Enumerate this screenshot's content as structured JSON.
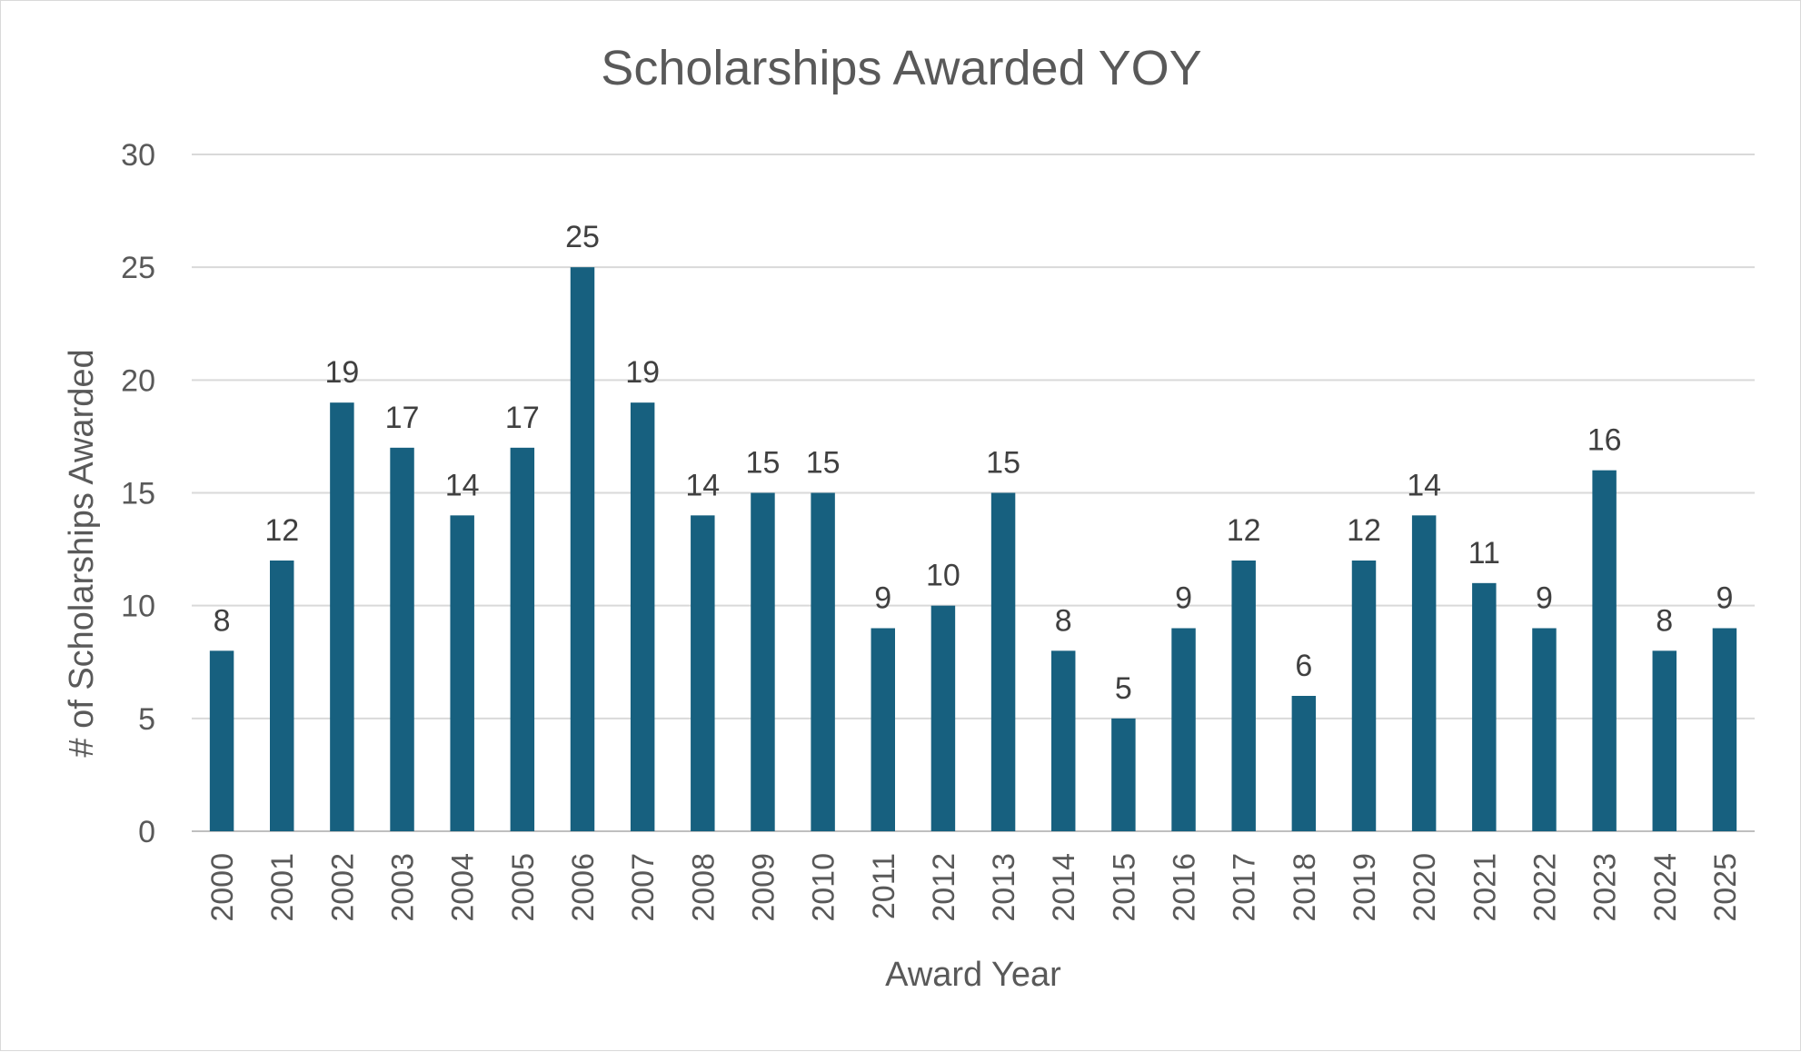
{
  "chart_data": {
    "type": "bar",
    "title": "Scholarships Awarded YOY",
    "xlabel": "Award Year",
    "ylabel": "# of Scholarships Awarded",
    "categories": [
      "2000",
      "2001",
      "2002",
      "2003",
      "2004",
      "2005",
      "2006",
      "2007",
      "2008",
      "2009",
      "2010",
      "2011",
      "2012",
      "2013",
      "2014",
      "2015",
      "2016",
      "2017",
      "2018",
      "2019",
      "2020",
      "2021",
      "2022",
      "2023",
      "2024",
      "2025"
    ],
    "series": [
      {
        "values": [
          8,
          12,
          19,
          17,
          14,
          17,
          25,
          19,
          14,
          15,
          15,
          9,
          10,
          15,
          8,
          5,
          9,
          12,
          6,
          12,
          14,
          11,
          9,
          16,
          8,
          9
        ]
      }
    ],
    "ylim": [
      0,
      30
    ],
    "yticks": [
      0,
      5,
      10,
      15,
      20,
      25,
      30
    ],
    "grid": true,
    "legend": "none",
    "data_labels": true,
    "colors": {
      "bar": "#17607f",
      "grid": "#d9d9d9",
      "text": "#595959"
    }
  }
}
